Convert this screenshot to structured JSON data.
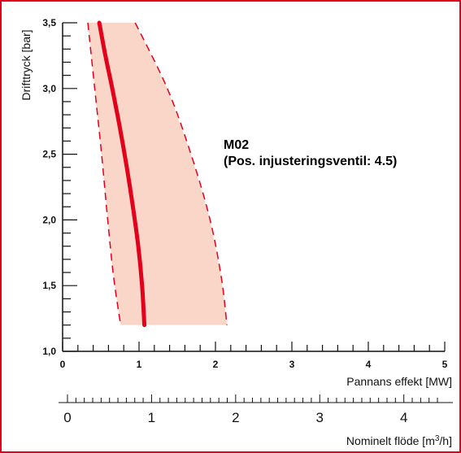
{
  "chart_data": {
    "type": "line",
    "ylabel": "Drifttryck [bar]",
    "xlabel": "Pannans effekt [MW]",
    "x2label_main": "Nominelt flöde [m",
    "x2label_sup": "3",
    "x2label_end": "/h]",
    "ylim": [
      1.0,
      3.5
    ],
    "xlim": [
      0,
      5
    ],
    "x2lim": [
      0,
      4.4
    ],
    "y_ticks": [
      {
        "value": 1.0,
        "label": "1,0"
      },
      {
        "value": 1.5,
        "label": "1,5"
      },
      {
        "value": 2.0,
        "label": "2,0"
      },
      {
        "value": 2.5,
        "label": "2,5"
      },
      {
        "value": 3.0,
        "label": "3,0"
      },
      {
        "value": 3.5,
        "label": "3,5"
      }
    ],
    "x_ticks": [
      {
        "value": 0,
        "label": "0"
      },
      {
        "value": 1,
        "label": "1"
      },
      {
        "value": 2,
        "label": "2"
      },
      {
        "value": 3,
        "label": "3"
      },
      {
        "value": 4,
        "label": "4"
      },
      {
        "value": 5,
        "label": "5"
      }
    ],
    "x2_ticks": [
      {
        "value": 0,
        "label": "0"
      },
      {
        "value": 1,
        "label": "1"
      },
      {
        "value": 2,
        "label": "2"
      },
      {
        "value": 3,
        "label": "3"
      },
      {
        "value": 4,
        "label": "4"
      }
    ],
    "series": [
      {
        "x": [
          0.48,
          0.56,
          0.65,
          0.75,
          0.84,
          0.92,
          0.99,
          1.04,
          1.07
        ],
        "y": [
          3.5,
          3.25,
          3.0,
          2.7,
          2.4,
          2.1,
          1.8,
          1.5,
          1.2
        ]
      }
    ],
    "band_lower": {
      "x": [
        0.33,
        0.42,
        0.51,
        0.59,
        0.66,
        0.72,
        0.76
      ],
      "y": [
        3.5,
        3.0,
        2.5,
        2.0,
        1.6,
        1.35,
        1.2
      ]
    },
    "band_upper": {
      "x": [
        0.95,
        1.37,
        1.68,
        1.93,
        2.08,
        2.15
      ],
      "y": [
        3.5,
        3.0,
        2.5,
        2.0,
        1.55,
        1.2
      ]
    },
    "annotation": {
      "line1": "M02",
      "line2": "(Pos. injusteringsventil: 4.5)"
    },
    "colors": {
      "curve": "#e3001b",
      "band_fill": "#f9d6c8",
      "frame": "#e3001b",
      "axis": "#111111"
    }
  }
}
